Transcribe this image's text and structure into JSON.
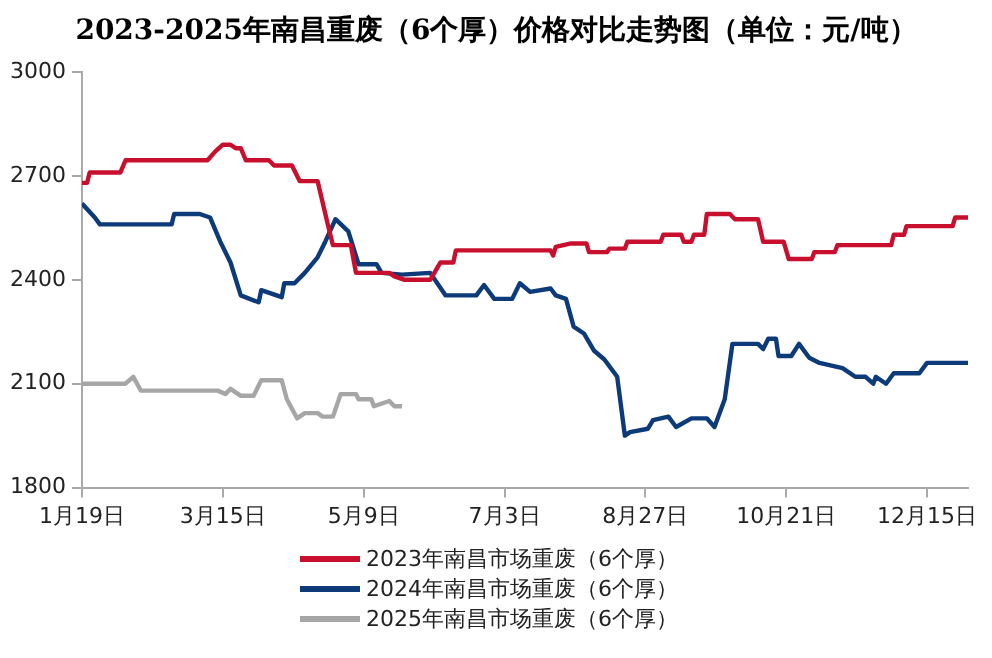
{
  "chart_data": {
    "type": "line",
    "title": "2023-2025年南昌重废（6个厚）价格对比走势图（单位：元/吨）",
    "xlim": [
      "--01-19",
      "--12-31"
    ],
    "xticks": [
      {
        "value": "--01-19",
        "label": "1月19日"
      },
      {
        "value": "--03-15",
        "label": "3月15日"
      },
      {
        "value": "--05-09",
        "label": "5月9日"
      },
      {
        "value": "--07-03",
        "label": "7月3日"
      },
      {
        "value": "--08-27",
        "label": "8月27日"
      },
      {
        "value": "--10-21",
        "label": "10月21日"
      },
      {
        "value": "--12-15",
        "label": "12月15日"
      }
    ],
    "ylim": [
      1800,
      3000
    ],
    "yticks": [
      1800,
      2100,
      2400,
      2700,
      3000
    ],
    "grid": false,
    "legend": "bottom",
    "marker": "none",
    "line_style": "solid",
    "series": [
      {
        "name": "2023年南昌市场重废（6个厚）",
        "color": "#c8102e",
        "x": [
          "--01-19",
          "--01-21",
          "--01-22",
          "--02-03",
          "--02-05",
          "--03-09",
          "--03-12",
          "--03-15",
          "--03-18",
          "--03-20",
          "--03-22",
          "--03-24",
          "--04-02",
          "--04-04",
          "--04-11",
          "--04-14",
          "--04-21",
          "--04-25",
          "--04-27",
          "--05-04",
          "--05-06",
          "--05-19",
          "--05-21",
          "--05-25",
          "--06-04",
          "--06-08",
          "--06-13",
          "--06-14",
          "--07-21",
          "--07-22",
          "--07-23",
          "--07-29",
          "--08-04",
          "--08-05",
          "--08-12",
          "--08-13",
          "--08-19",
          "--08-20",
          "--09-02",
          "--09-03",
          "--09-10",
          "--09-11",
          "--09-14",
          "--09-15",
          "--09-19",
          "--09-20",
          "--09-29",
          "--10-01",
          "--10-10",
          "--10-12",
          "--10-20",
          "--10-22",
          "--10-31",
          "--11-01",
          "--11-09",
          "--11-10",
          "--12-01",
          "--12-02",
          "--12-06",
          "--12-07",
          "--12-25",
          "--12-26",
          "--12-31"
        ],
        "values": [
          2680,
          2680,
          2710,
          2710,
          2745,
          2745,
          2770,
          2790,
          2790,
          2780,
          2780,
          2745,
          2745,
          2730,
          2730,
          2685,
          2685,
          2560,
          2500,
          2500,
          2420,
          2420,
          2410,
          2400,
          2400,
          2450,
          2450,
          2485,
          2485,
          2470,
          2495,
          2505,
          2505,
          2480,
          2480,
          2490,
          2490,
          2510,
          2510,
          2530,
          2530,
          2510,
          2510,
          2530,
          2530,
          2590,
          2590,
          2575,
          2575,
          2510,
          2510,
          2460,
          2460,
          2480,
          2480,
          2500,
          2500,
          2530,
          2530,
          2555,
          2555,
          2580,
          2580
        ]
      },
      {
        "name": "2024年南昌市场重废（6个厚）",
        "color": "#0d3b7a",
        "x": [
          "--01-19",
          "--01-24",
          "--01-26",
          "--02-23",
          "--02-24",
          "--03-06",
          "--03-10",
          "--03-14",
          "--03-18",
          "--03-22",
          "--03-29",
          "--03-30",
          "--04-07",
          "--04-08",
          "--04-12",
          "--04-16",
          "--04-21",
          "--04-24",
          "--04-28",
          "--05-03",
          "--05-07",
          "--05-14",
          "--05-16",
          "--05-24",
          "--06-04",
          "--06-10",
          "--06-22",
          "--06-25",
          "--06-29",
          "--07-06",
          "--07-09",
          "--07-13",
          "--07-21",
          "--07-23",
          "--07-27",
          "--07-30",
          "--08-03",
          "--08-07",
          "--08-11",
          "--08-16",
          "--08-19",
          "--08-21",
          "--08-28",
          "--08-30",
          "--09-05",
          "--09-08",
          "--09-14",
          "--09-20",
          "--09-23",
          "--09-27",
          "--09-30",
          "--10-10",
          "--10-12",
          "--10-14",
          "--10-17",
          "--10-18",
          "--10-23",
          "--10-26",
          "--10-30",
          "--11-03",
          "--11-12",
          "--11-17",
          "--11-21",
          "--11-24",
          "--11-25",
          "--11-29",
          "--12-02",
          "--12-12",
          "--12-15",
          "--12-31"
        ],
        "values": [
          2620,
          2580,
          2560,
          2560,
          2590,
          2590,
          2580,
          2510,
          2450,
          2355,
          2335,
          2370,
          2350,
          2390,
          2390,
          2420,
          2465,
          2510,
          2575,
          2540,
          2445,
          2445,
          2420,
          2415,
          2420,
          2355,
          2355,
          2385,
          2345,
          2345,
          2390,
          2365,
          2375,
          2355,
          2345,
          2265,
          2245,
          2195,
          2170,
          2120,
          1950,
          1960,
          1970,
          1995,
          2005,
          1975,
          2000,
          2000,
          1975,
          2055,
          2215,
          2215,
          2200,
          2230,
          2230,
          2180,
          2180,
          2215,
          2175,
          2160,
          2145,
          2120,
          2120,
          2100,
          2120,
          2100,
          2130,
          2130,
          2160,
          2160
        ]
      },
      {
        "name": "2025年南昌市场重废（6个厚）",
        "color": "#a6a6a6",
        "x": [
          "--01-19",
          "--02-05",
          "--02-08",
          "--02-11",
          "--03-13",
          "--03-16",
          "--03-18",
          "--03-22",
          "--03-27",
          "--03-30",
          "--04-07",
          "--04-09",
          "--04-13",
          "--04-16",
          "--04-21",
          "--04-23",
          "--04-27",
          "--04-30",
          "--05-06",
          "--05-07",
          "--05-12",
          "--05-13",
          "--05-19",
          "--05-21",
          "--05-24"
        ],
        "values": [
          2100,
          2100,
          2120,
          2080,
          2080,
          2070,
          2085,
          2065,
          2065,
          2110,
          2110,
          2055,
          2000,
          2015,
          2015,
          2005,
          2005,
          2070,
          2070,
          2055,
          2055,
          2035,
          2050,
          2035,
          2035
        ]
      }
    ]
  }
}
